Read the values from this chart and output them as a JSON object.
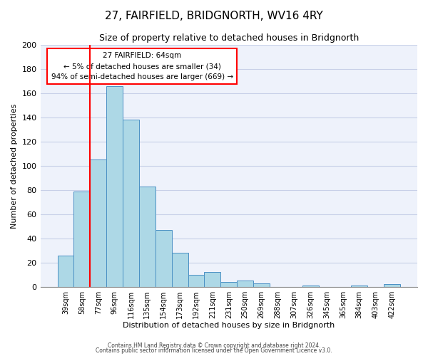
{
  "title": "27, FAIRFIELD, BRIDGNORTH, WV16 4RY",
  "subtitle": "Size of property relative to detached houses in Bridgnorth",
  "xlabel": "Distribution of detached houses by size in Bridgnorth",
  "ylabel": "Number of detached properties",
  "bin_labels": [
    "39sqm",
    "58sqm",
    "77sqm",
    "96sqm",
    "116sqm",
    "135sqm",
    "154sqm",
    "173sqm",
    "192sqm",
    "211sqm",
    "231sqm",
    "250sqm",
    "269sqm",
    "288sqm",
    "307sqm",
    "326sqm",
    "345sqm",
    "365sqm",
    "384sqm",
    "403sqm",
    "422sqm"
  ],
  "bar_heights": [
    26,
    79,
    105,
    166,
    138,
    83,
    47,
    28,
    10,
    12,
    4,
    5,
    3,
    0,
    0,
    1,
    0,
    0,
    1,
    0,
    2
  ],
  "bar_color": "#add8e6",
  "bar_edge_color": "#4a90c4",
  "red_line_x": 1.5,
  "annotation_line1": "27 FAIRFIELD: 64sqm",
  "annotation_line2": "← 5% of detached houses are smaller (34)",
  "annotation_line3": "94% of semi-detached houses are larger (669) →",
  "ylim": [
    0,
    200
  ],
  "yticks": [
    0,
    20,
    40,
    60,
    80,
    100,
    120,
    140,
    160,
    180,
    200
  ],
  "footer1": "Contains HM Land Registry data © Crown copyright and database right 2024.",
  "footer2": "Contains public sector information licensed under the Open Government Licence v3.0.",
  "background_color": "#eef2fb",
  "grid_color": "#c8d0e8",
  "title_fontsize": 11,
  "subtitle_fontsize": 9,
  "ylabel_fontsize": 8,
  "xlabel_fontsize": 8,
  "tick_fontsize": 7,
  "footer_fontsize": 5.5
}
